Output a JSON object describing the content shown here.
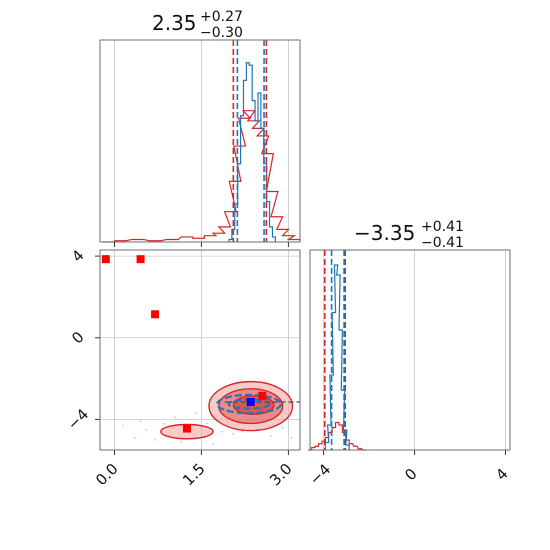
{
  "colors": {
    "red": "#d62728",
    "blue": "#1f77b4",
    "red_fill": "#f2a0a0",
    "red_fill_dark": "#e36a6a",
    "marker_blue": "#0000ff",
    "marker_red": "#ff0000",
    "grid": "#c8c8c8"
  },
  "chart_data": {
    "type": "corner",
    "grid": true,
    "panels": {
      "p1": {
        "type": "histogram",
        "title": {
          "value": "2.35",
          "upper": "+0.27",
          "lower": "−0.30"
        },
        "xlim": [
          -0.25,
          3.2
        ],
        "ymax": 160,
        "x_grid": [
          0.0,
          1.5,
          3.0
        ],
        "quantiles_red": [
          2.05,
          2.62
        ],
        "quantiles_blue": [
          2.12,
          2.58
        ],
        "blue_bins": [
          {
            "x": 2.0,
            "y": 2
          },
          {
            "x": 2.05,
            "y": 10
          },
          {
            "x": 2.1,
            "y": 30
          },
          {
            "x": 2.15,
            "y": 62
          },
          {
            "x": 2.2,
            "y": 100
          },
          {
            "x": 2.25,
            "y": 128
          },
          {
            "x": 2.3,
            "y": 142
          },
          {
            "x": 2.35,
            "y": 140
          },
          {
            "x": 2.4,
            "y": 112
          },
          {
            "x": 2.45,
            "y": 96
          },
          {
            "x": 2.5,
            "y": 118
          },
          {
            "x": 2.55,
            "y": 90
          },
          {
            "x": 2.6,
            "y": 62
          },
          {
            "x": 2.65,
            "y": 32
          },
          {
            "x": 2.7,
            "y": 12
          },
          {
            "x": 2.75,
            "y": 4
          }
        ],
        "red_bins": [
          {
            "x": -0.1,
            "y": 0
          },
          {
            "x": 0.1,
            "y": 1
          },
          {
            "x": 0.4,
            "y": 2
          },
          {
            "x": 0.7,
            "y": 1
          },
          {
            "x": 1.0,
            "y": 2
          },
          {
            "x": 1.25,
            "y": 4
          },
          {
            "x": 1.45,
            "y": 3
          },
          {
            "x": 1.65,
            "y": 5
          },
          {
            "x": 1.8,
            "y": 7
          },
          {
            "x": 1.9,
            "y": 12
          },
          {
            "x": 2.0,
            "y": 24
          },
          {
            "x": 2.08,
            "y": 48
          },
          {
            "x": 2.16,
            "y": 76
          },
          {
            "x": 2.24,
            "y": 98
          },
          {
            "x": 2.32,
            "y": 104
          },
          {
            "x": 2.4,
            "y": 96
          },
          {
            "x": 2.48,
            "y": 90
          },
          {
            "x": 2.56,
            "y": 84
          },
          {
            "x": 2.64,
            "y": 70
          },
          {
            "x": 2.72,
            "y": 40
          },
          {
            "x": 2.8,
            "y": 20
          },
          {
            "x": 2.9,
            "y": 10
          },
          {
            "x": 3.0,
            "y": 5
          },
          {
            "x": 3.1,
            "y": 2
          }
        ]
      },
      "p2": {
        "type": "histogram",
        "title": {
          "value": "−3.35",
          "upper": "+0.41",
          "lower": "−0.41"
        },
        "xlim": [
          -4.6,
          4.2
        ],
        "ymax": 160,
        "x_ticks": [
          -4,
          0,
          4
        ],
        "x_tick_labels": [
          "−4",
          "0",
          "4"
        ],
        "quantiles_red": [
          -3.95,
          -3.05
        ],
        "quantiles_blue": [
          -3.65,
          -3.1
        ],
        "blue_bins": [
          {
            "x": -4.0,
            "y": 0
          },
          {
            "x": -3.85,
            "y": 6
          },
          {
            "x": -3.75,
            "y": 20
          },
          {
            "x": -3.65,
            "y": 60
          },
          {
            "x": -3.55,
            "y": 110
          },
          {
            "x": -3.45,
            "y": 148
          },
          {
            "x": -3.35,
            "y": 140
          },
          {
            "x": -3.25,
            "y": 96
          },
          {
            "x": -3.15,
            "y": 48
          },
          {
            "x": -3.05,
            "y": 16
          },
          {
            "x": -2.95,
            "y": 4
          }
        ],
        "red_bins": [
          {
            "x": -4.6,
            "y": 0
          },
          {
            "x": -4.45,
            "y": 2
          },
          {
            "x": -4.3,
            "y": 3
          },
          {
            "x": -4.15,
            "y": 5
          },
          {
            "x": -4.0,
            "y": 7
          },
          {
            "x": -3.85,
            "y": 10
          },
          {
            "x": -3.7,
            "y": 14
          },
          {
            "x": -3.55,
            "y": 18
          },
          {
            "x": -3.4,
            "y": 22
          },
          {
            "x": -3.25,
            "y": 20
          },
          {
            "x": -3.1,
            "y": 14
          },
          {
            "x": -2.95,
            "y": 8
          },
          {
            "x": -2.8,
            "y": 5
          },
          {
            "x": -2.6,
            "y": 3
          },
          {
            "x": -2.4,
            "y": 1
          },
          {
            "x": -2.2,
            "y": 0
          }
        ]
      },
      "p3": {
        "type": "2d-density",
        "xlim": [
          -0.25,
          3.2
        ],
        "ylim": [
          -5.5,
          4.3
        ],
        "x_ticks": [
          0.0,
          1.5,
          3.0
        ],
        "x_tick_labels": [
          "0.0",
          "1.5",
          "3.0"
        ],
        "y_ticks": [
          4,
          0,
          -4
        ],
        "y_tick_labels": [
          "4",
          "0",
          "−4"
        ],
        "red_contours": [
          {
            "cx": 2.35,
            "cy": -3.35,
            "rx": 0.72,
            "ry": 1.2,
            "level": "outer"
          },
          {
            "cx": 2.35,
            "cy": -3.35,
            "rx": 0.55,
            "ry": 0.85,
            "level": "middle"
          },
          {
            "cx": 2.4,
            "cy": -3.3,
            "rx": 0.35,
            "ry": 0.45,
            "level": "inner"
          },
          {
            "cx": 1.25,
            "cy": -4.6,
            "rx": 0.45,
            "ry": 0.35,
            "level": "outer"
          }
        ],
        "blue_contours": [
          {
            "cx": 2.32,
            "cy": -3.25,
            "rx": 0.55,
            "ry": 0.45
          },
          {
            "cx": 2.32,
            "cy": -3.25,
            "rx": 0.35,
            "ry": 0.22
          }
        ],
        "red_squares": [
          {
            "x": -0.15,
            "y": 3.85
          },
          {
            "x": 0.45,
            "y": 3.85
          },
          {
            "x": 0.7,
            "y": 1.15
          },
          {
            "x": 1.25,
            "y": -4.45
          },
          {
            "x": 2.55,
            "y": -2.85
          }
        ],
        "blue_squares": [
          {
            "x": 2.35,
            "y": -3.15
          }
        ],
        "dashed_truth": {
          "x": 2.35,
          "y": -3.15
        },
        "scatter_points": [
          {
            "x": 0.15,
            "y": -4.3
          },
          {
            "x": 0.35,
            "y": -4.9
          },
          {
            "x": 0.55,
            "y": -4.5
          },
          {
            "x": 0.7,
            "y": -5.0
          },
          {
            "x": 0.85,
            "y": -4.2
          },
          {
            "x": 0.95,
            "y": -4.8
          },
          {
            "x": 1.05,
            "y": -3.9
          },
          {
            "x": 1.15,
            "y": -5.1
          },
          {
            "x": 1.3,
            "y": -4.0
          },
          {
            "x": 1.4,
            "y": -3.7
          },
          {
            "x": 1.55,
            "y": -4.9
          },
          {
            "x": 1.6,
            "y": -4.2
          },
          {
            "x": 1.75,
            "y": -3.9
          },
          {
            "x": 1.85,
            "y": -4.6
          },
          {
            "x": 1.95,
            "y": -4.1
          },
          {
            "x": 2.05,
            "y": -4.7
          },
          {
            "x": 2.2,
            "y": -4.6
          },
          {
            "x": 2.45,
            "y": -4.5
          },
          {
            "x": 2.7,
            "y": -4.8
          },
          {
            "x": 2.9,
            "y": -4.4
          },
          {
            "x": 3.05,
            "y": -4.9
          },
          {
            "x": 0.45,
            "y": -4.1
          },
          {
            "x": 1.0,
            "y": -4.4
          },
          {
            "x": 1.7,
            "y": -5.2
          },
          {
            "x": 2.1,
            "y": -3.1
          },
          {
            "x": 2.85,
            "y": -3.0
          },
          {
            "x": 2.95,
            "y": -3.7
          },
          {
            "x": 1.85,
            "y": -3.5
          }
        ]
      }
    }
  }
}
